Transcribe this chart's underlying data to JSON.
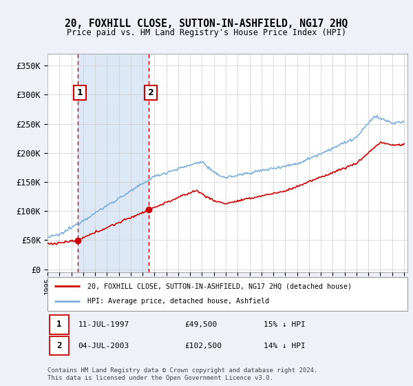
{
  "title": "20, FOXHILL CLOSE, SUTTON-IN-ASHFIELD, NG17 2HQ",
  "subtitle": "Price paid vs. HM Land Registry's House Price Index (HPI)",
  "y_ticks": [
    0,
    50000,
    100000,
    150000,
    200000,
    250000,
    300000,
    350000
  ],
  "y_tick_labels": [
    "£0",
    "£50K",
    "£100K",
    "£150K",
    "£200K",
    "£250K",
    "£300K",
    "£350K"
  ],
  "sale1_year": 1997.53,
  "sale1_price": 49500,
  "sale1_label": "1",
  "sale1_date": "11-JUL-1997",
  "sale1_hpi_diff": "15% ↓ HPI",
  "sale2_year": 2003.5,
  "sale2_price": 102500,
  "sale2_label": "2",
  "sale2_date": "04-JUL-2003",
  "sale2_hpi_diff": "14% ↓ HPI",
  "legend_line1": "20, FOXHILL CLOSE, SUTTON-IN-ASHFIELD, NG17 2HQ (detached house)",
  "legend_line2": "HPI: Average price, detached house, Ashfield",
  "footnote": "Contains HM Land Registry data © Crown copyright and database right 2024.\nThis data is licensed under the Open Government Licence v3.0.",
  "bg_color": "#eef2f8",
  "plot_bg_color": "#ffffff",
  "hpi_color": "#7aaddb",
  "price_color": "#cc0000",
  "highlight_bg": "#dce8f5",
  "vline_color": "#cc0000",
  "grid_color": "#cccccc",
  "ylim_min": -5000,
  "ylim_max": 370000,
  "xlim_min": 1995,
  "xlim_max": 2025.3
}
